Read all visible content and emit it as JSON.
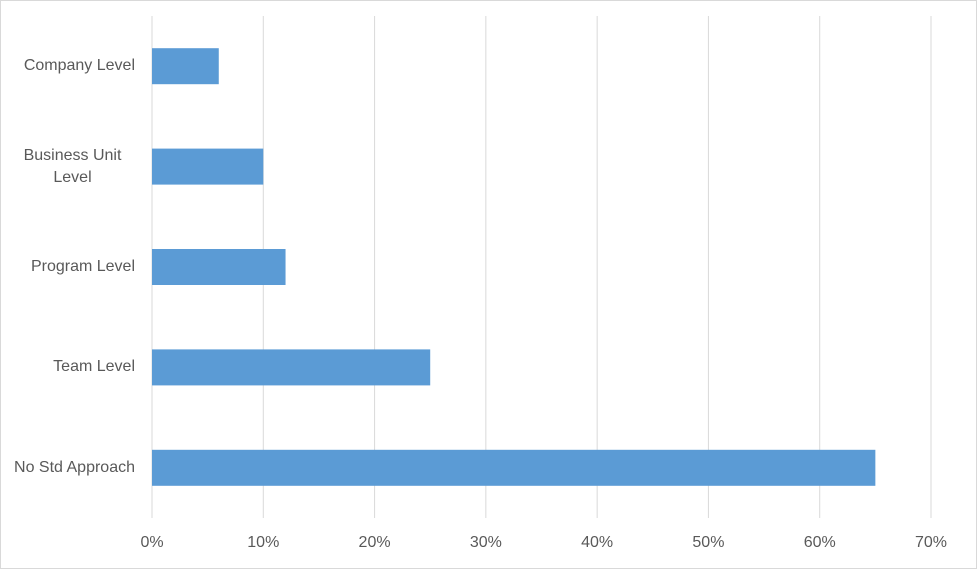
{
  "chart_data": {
    "type": "bar",
    "orientation": "horizontal",
    "categories": [
      "Company Level",
      "Business Unit Level",
      "Program Level",
      "Team Level",
      "No Std Approach"
    ],
    "values": [
      6,
      10,
      12,
      25,
      65
    ],
    "color": "#5b9bd5",
    "xlim": [
      0,
      70
    ],
    "xticks": [
      {
        "value": 0,
        "label": "0%"
      },
      {
        "value": 10,
        "label": "10%"
      },
      {
        "value": 20,
        "label": "20%"
      },
      {
        "value": 30,
        "label": "30%"
      },
      {
        "value": 40,
        "label": "40%"
      },
      {
        "value": 50,
        "label": "50%"
      },
      {
        "value": 60,
        "label": "60%"
      },
      {
        "value": 70,
        "label": "70%"
      }
    ],
    "grid": true
  }
}
